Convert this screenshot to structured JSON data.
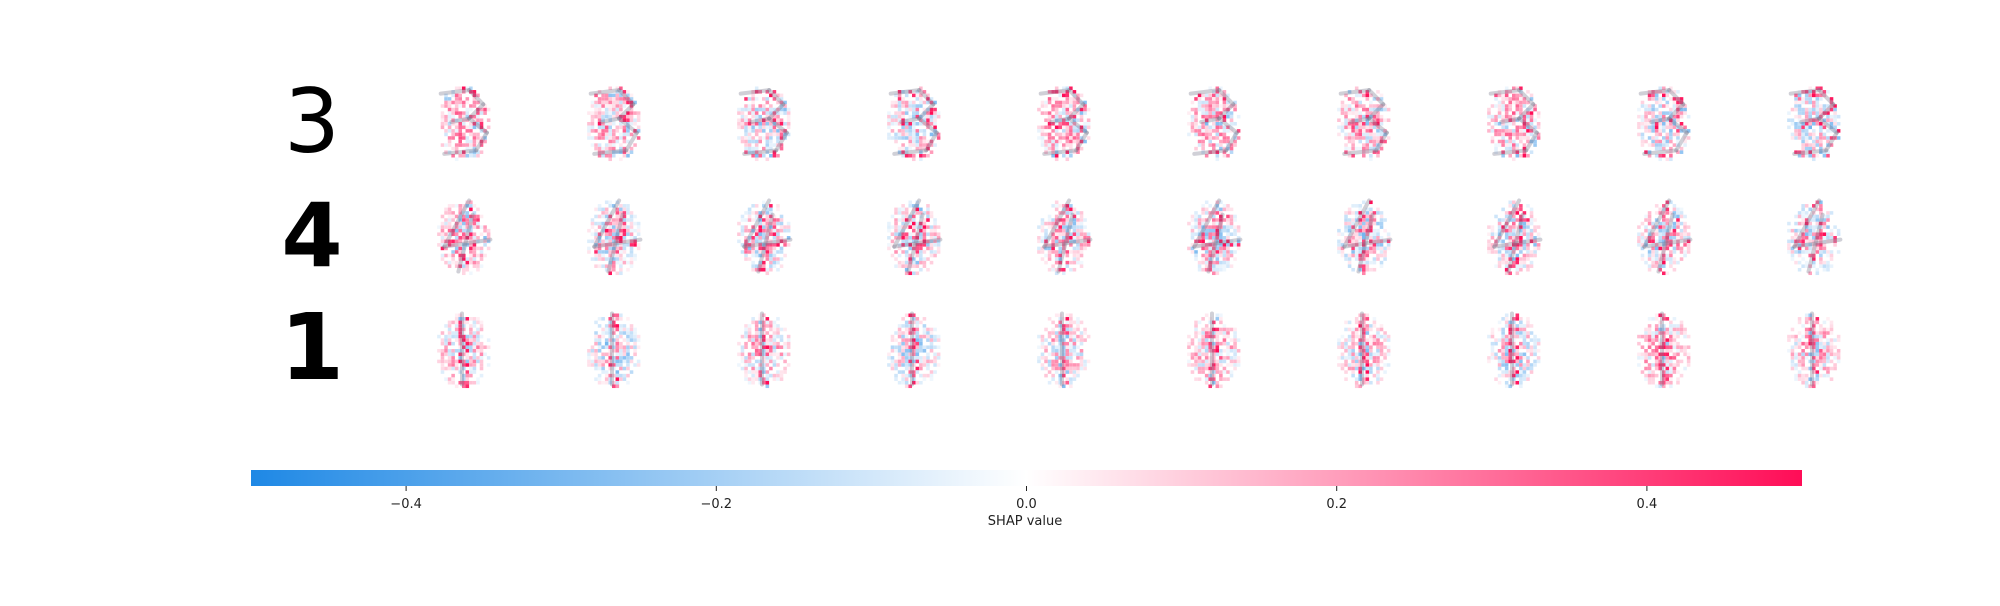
{
  "chart_data": {
    "type": "heatmap",
    "title": "",
    "rows": [
      {
        "original": "3",
        "explanations": 10
      },
      {
        "original": "4",
        "explanations": 10
      },
      {
        "original": "1",
        "explanations": 10
      }
    ],
    "colorbar": {
      "label": "SHAP value",
      "range": [
        -0.5,
        0.5
      ],
      "ticks": [
        -0.4,
        -0.2,
        0.0,
        0.2,
        0.4
      ],
      "tick_labels": [
        "−0.4",
        "−0.2",
        "0.0",
        "0.2",
        "0.4"
      ],
      "colors": {
        "negative": "#1E88E5",
        "zero": "#FFFFFF",
        "positive": "#FF0D57"
      }
    }
  }
}
